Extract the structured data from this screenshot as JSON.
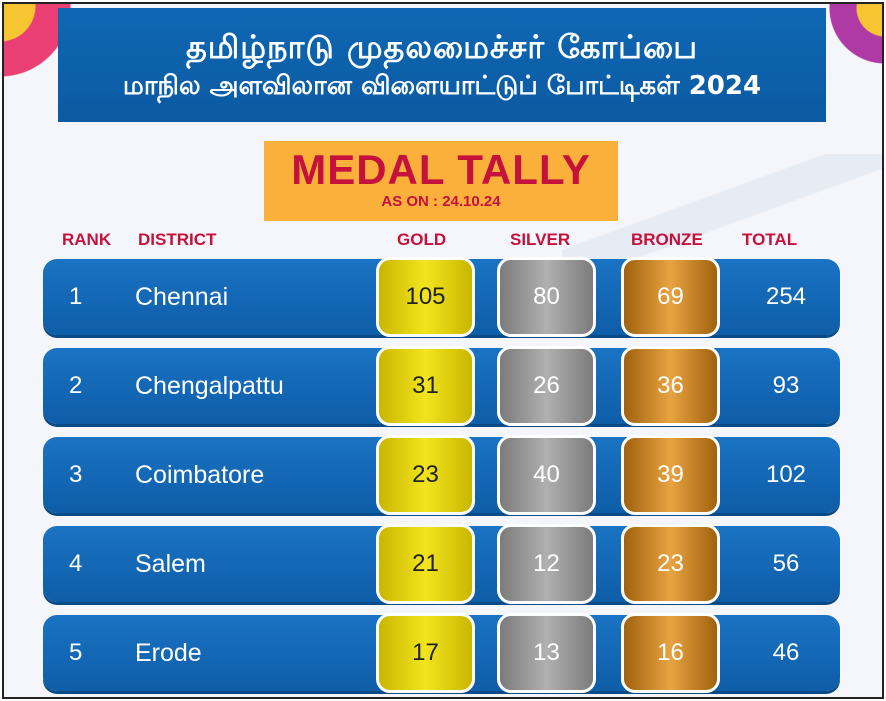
{
  "header": {
    "title_line1": "தமிழ்நாடு முதலமைச்சர் கோப்பை",
    "title_line2": "மாநில அளவிலான விளையாட்டுப் போட்டிகள் 2024"
  },
  "badge": {
    "title": "MEDAL TALLY",
    "date": "AS ON : 24.10.24"
  },
  "columns": {
    "rank": "RANK",
    "district": "DISTRICT",
    "gold": "GOLD",
    "silver": "SILVER",
    "bronze": "BRONZE",
    "total": "TOTAL"
  },
  "rows": [
    {
      "rank": "1",
      "district": "Chennai",
      "gold": "105",
      "silver": "80",
      "bronze": "69",
      "total": "254"
    },
    {
      "rank": "2",
      "district": "Chengalpattu",
      "gold": "31",
      "silver": "26",
      "bronze": "36",
      "total": "93"
    },
    {
      "rank": "3",
      "district": "Coimbatore",
      "gold": "23",
      "silver": "40",
      "bronze": "39",
      "total": "102"
    },
    {
      "rank": "4",
      "district": "Salem",
      "gold": "21",
      "silver": "12",
      "bronze": "23",
      "total": "56"
    },
    {
      "rank": "5",
      "district": "Erode",
      "gold": "17",
      "silver": "13",
      "bronze": "16",
      "total": "46"
    }
  ],
  "colors": {
    "row_blue": "#0e5da8",
    "header_red": "#c4123d",
    "badge_orange": "#fbb03b",
    "gold": "#f2e51e",
    "silver": "#b0b0b0",
    "bronze": "#e8a341"
  }
}
